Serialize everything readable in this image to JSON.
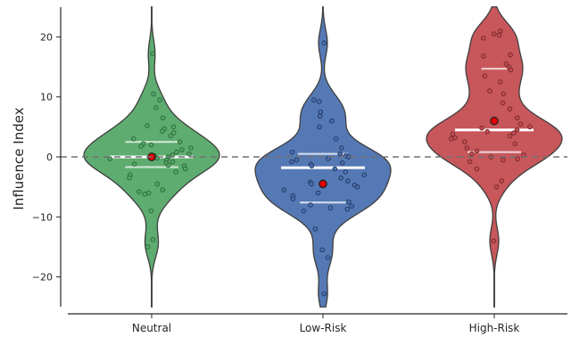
{
  "chart_data": {
    "type": "violin",
    "ylabel": "Influence Index",
    "ylim": [
      -25,
      25
    ],
    "yticks": [
      -20,
      -10,
      0,
      10,
      20
    ],
    "zero_reference_line": true,
    "grid": false,
    "categories": [
      {
        "name": "Neutral",
        "color": "#55a868",
        "dot_color": "#2f6b3c",
        "mean": 0.0,
        "median": 0.0,
        "q1": -1.7,
        "q3": 2.5,
        "range": [
          -25,
          25
        ],
        "points": [
          17.2,
          10.5,
          9.5,
          8.2,
          6.5,
          5.2,
          5.0,
          4.7,
          4.3,
          4.0,
          3.5,
          3.0,
          2.5,
          2.2,
          2.0,
          1.8,
          1.5,
          1.2,
          0.8,
          0.5,
          0.3,
          0.2,
          0.0,
          -0.2,
          -0.3,
          -0.5,
          -0.8,
          -1.0,
          -1.2,
          -1.4,
          -1.5,
          -2.0,
          -2.5,
          -3.0,
          -3.5,
          -4.5,
          -5.5,
          -5.8,
          -6.0,
          -6.2,
          -9.0,
          -13.8,
          -15.0
        ]
      },
      {
        "name": "Low-Risk",
        "color": "#4c72b0",
        "dot_color": "#243a66",
        "mean": -4.5,
        "median": -1.8,
        "q1": -7.6,
        "q3": 0.5,
        "range": [
          -25,
          25
        ],
        "points": [
          19.0,
          9.5,
          9.2,
          7.5,
          6.8,
          6.0,
          5.0,
          3.0,
          1.5,
          0.8,
          0.5,
          0.2,
          0.0,
          -0.3,
          -0.5,
          -0.8,
          -1.0,
          -1.2,
          -1.5,
          -2.0,
          -2.5,
          -3.0,
          -3.5,
          -4.0,
          -4.2,
          -4.5,
          -4.7,
          -5.0,
          -5.5,
          -6.0,
          -6.5,
          -7.0,
          -7.5,
          -8.0,
          -8.2,
          -8.5,
          -8.7,
          -9.0,
          -12.0,
          -15.5,
          -16.8,
          -22.8
        ]
      },
      {
        "name": "High-Risk",
        "color": "#c44e52",
        "dot_color": "#7a2a2e",
        "mean": 6.0,
        "median": 4.5,
        "q1": 0.8,
        "q3": 14.7,
        "range": [
          -25,
          25
        ],
        "points": [
          21.0,
          20.5,
          20.3,
          19.8,
          17.0,
          16.8,
          15.5,
          15.0,
          14.5,
          13.5,
          12.5,
          11.0,
          10.5,
          9.0,
          8.0,
          6.5,
          6.0,
          5.5,
          5.0,
          4.8,
          4.5,
          4.2,
          4.0,
          3.8,
          3.5,
          3.2,
          3.0,
          2.5,
          2.2,
          1.5,
          1.0,
          0.5,
          0.3,
          0.0,
          -0.3,
          -0.5,
          -0.8,
          -2.0,
          -4.0,
          -5.0,
          -14.0
        ]
      }
    ]
  }
}
